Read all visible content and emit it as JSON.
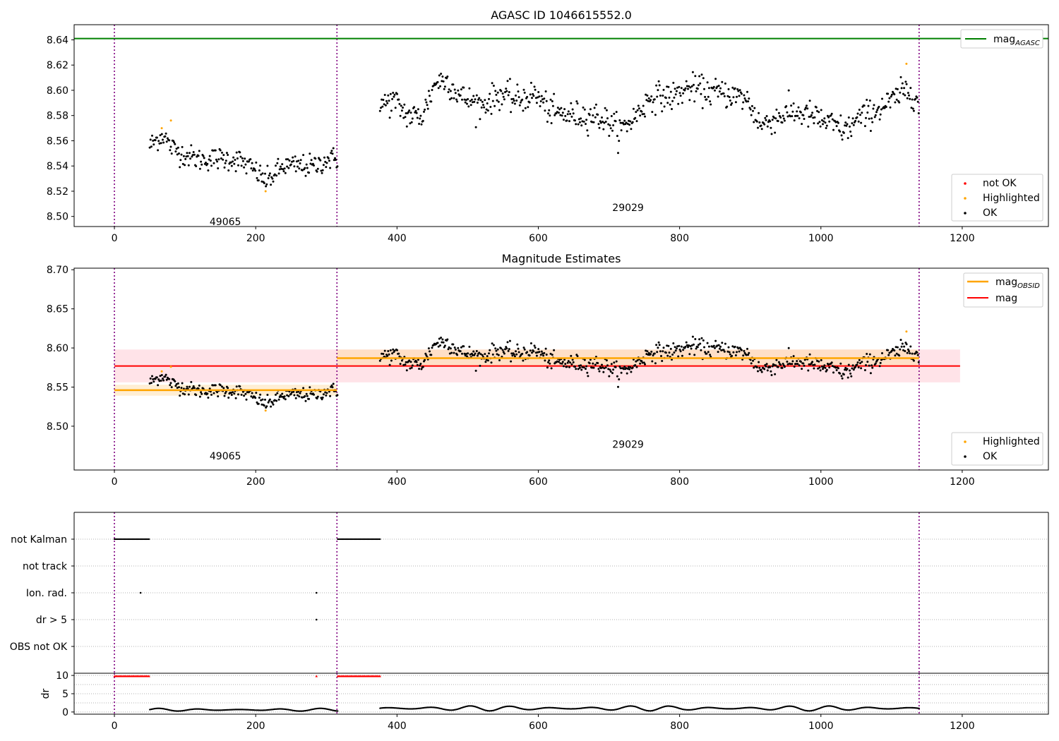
{
  "figure": {
    "title": "AGASC ID 1046615552.0",
    "subtitle": "Magnitude Estimates"
  },
  "colors": {
    "mag_agasc": "#008000",
    "mag_obsid": "#ffa500",
    "mag": "#ff0000",
    "ok": "#000000",
    "highlighted": "#ffa500",
    "not_ok": "#ff0000",
    "obsid_boundary": "#800080",
    "band_mag": "#ffc0cb",
    "band_obsid": "#ffd9a0"
  },
  "chart_data": [
    {
      "type": "scatter",
      "title": "AGASC ID 1046615552.0",
      "xlim": [
        -57,
        1322
      ],
      "ylim": [
        8.492,
        8.652
      ],
      "xticks": [
        0,
        200,
        400,
        600,
        800,
        1000,
        1200
      ],
      "xtick_labels": [
        "0",
        "200",
        "400",
        "600",
        "800",
        "1000",
        "1200"
      ],
      "yticks": [
        8.5,
        8.52,
        8.54,
        8.56,
        8.58,
        8.6,
        8.62,
        8.64
      ],
      "ytick_labels": [
        "8.50",
        "8.52",
        "8.54",
        "8.56",
        "8.58",
        "8.60",
        "8.62",
        "8.64"
      ],
      "obsid_boundaries": [
        0,
        315,
        1139
      ],
      "obsid_labels": [
        {
          "text": "49065",
          "x": 157,
          "y": 8.496
        },
        {
          "text": "29029",
          "x": 727,
          "y": 8.507
        }
      ],
      "lines": [
        {
          "name": "mag_AGASC",
          "y": 8.641
        }
      ],
      "legend_top": {
        "position": "upper right",
        "entries": [
          "mag_AGASC"
        ]
      },
      "legend": {
        "position": "lower right",
        "entries": [
          "not OK",
          "Highlighted",
          "OK"
        ]
      },
      "series": [
        {
          "name": "OK",
          "segments": [
            {
              "x_start": 50,
              "x_end": 316,
              "knots": [
                [
                  50,
                  8.556
                ],
                [
                  62,
                  8.562
                ],
                [
                  70,
                  8.565
                ],
                [
                  78,
                  8.556
                ],
                [
                  95,
                  8.55
                ],
                [
                  120,
                  8.545
                ],
                [
                  150,
                  8.546
                ],
                [
                  175,
                  8.545
                ],
                [
                  195,
                  8.538
                ],
                [
                  215,
                  8.528
                ],
                [
                  240,
                  8.54
                ],
                [
                  265,
                  8.54
                ],
                [
                  285,
                  8.54
                ],
                [
                  300,
                  8.545
                ],
                [
                  316,
                  8.546
                ]
              ],
              "noise": 0.0045
            },
            {
              "x_start": 376,
              "x_end": 1139,
              "knots": [
                [
                  376,
                  8.588
                ],
                [
                  395,
                  8.592
                ],
                [
                  415,
                  8.58
                ],
                [
                  435,
                  8.579
                ],
                [
                  455,
                  8.607
                ],
                [
                  470,
                  8.608
                ],
                [
                  490,
                  8.595
                ],
                [
                  520,
                  8.588
                ],
                [
                  545,
                  8.597
                ],
                [
                  570,
                  8.592
                ],
                [
                  595,
                  8.597
                ],
                [
                  620,
                  8.582
                ],
                [
                  650,
                  8.58
                ],
                [
                  680,
                  8.58
                ],
                [
                  700,
                  8.575
                ],
                [
                  715,
                  8.568
                ],
                [
                  735,
                  8.578
                ],
                [
                  760,
                  8.595
                ],
                [
                  790,
                  8.595
                ],
                [
                  815,
                  8.602
                ],
                [
                  840,
                  8.599
                ],
                [
                  870,
                  8.597
                ],
                [
                  895,
                  8.593
                ],
                [
                  915,
                  8.572
                ],
                [
                  935,
                  8.578
                ],
                [
                  960,
                  8.583
                ],
                [
                  985,
                  8.58
                ],
                [
                  1010,
                  8.574
                ],
                [
                  1035,
                  8.568
                ],
                [
                  1055,
                  8.578
                ],
                [
                  1080,
                  8.585
                ],
                [
                  1100,
                  8.591
                ],
                [
                  1120,
                  8.6
                ],
                [
                  1135,
                  8.597
                ],
                [
                  1139,
                  8.583
                ]
              ],
              "noise": 0.0055
            }
          ]
        },
        {
          "name": "Highlighted",
          "points": [
            [
              67,
              8.57
            ],
            [
              80,
              8.576
            ],
            [
              214,
              8.52
            ],
            [
              1121,
              8.621
            ]
          ]
        },
        {
          "name": "not OK",
          "points": []
        }
      ]
    },
    {
      "type": "scatter",
      "title": "Magnitude Estimates",
      "xlim": [
        -57,
        1322
      ],
      "ylim": [
        8.444,
        8.702
      ],
      "xticks": [
        0,
        200,
        400,
        600,
        800,
        1000,
        1200
      ],
      "xtick_labels": [
        "0",
        "200",
        "400",
        "600",
        "800",
        "1000",
        "1200"
      ],
      "yticks": [
        8.5,
        8.55,
        8.6,
        8.65,
        8.7
      ],
      "ytick_labels": [
        "8.50",
        "8.55",
        "8.60",
        "8.65",
        "8.70"
      ],
      "obsid_boundaries": [
        0,
        315,
        1139
      ],
      "obsid_labels": [
        {
          "text": "49065",
          "x": 157,
          "y": 8.462
        },
        {
          "text": "29029",
          "x": 727,
          "y": 8.477
        }
      ],
      "lines": [
        {
          "name": "mag_OBSID",
          "segments": [
            [
              0,
              315,
              8.546
            ],
            [
              315,
              1139,
              8.587
            ]
          ]
        },
        {
          "name": "mag",
          "x_range": [
            0,
            1197
          ],
          "y": 8.577
        }
      ],
      "bands": [
        {
          "name": "mag",
          "x_range": [
            0,
            1197
          ],
          "y_range": [
            8.556,
            8.598
          ]
        },
        {
          "name": "mag_OBSID",
          "x_range": [
            0,
            315
          ],
          "y_range": [
            8.539,
            8.553
          ]
        },
        {
          "name": "mag_OBSID",
          "x_range": [
            315,
            1139
          ],
          "y_range": [
            8.577,
            8.598
          ]
        }
      ],
      "legend_top": {
        "position": "upper right",
        "entries": [
          "mag_OBSID",
          "mag"
        ]
      },
      "legend": {
        "position": "lower right",
        "entries": [
          "Highlighted",
          "OK"
        ]
      },
      "series": [
        {
          "name": "OK",
          "same_as_panel": 0
        },
        {
          "name": "Highlighted",
          "points": [
            [
              67,
              8.57
            ],
            [
              80,
              8.576
            ],
            [
              214,
              8.52
            ],
            [
              1121,
              8.621
            ]
          ]
        }
      ]
    },
    {
      "type": "scatter",
      "title": "",
      "xlim": [
        -57,
        1322
      ],
      "categories": [
        "not Kalman",
        "not track",
        "Ion. rad.",
        "dr > 5",
        "OBS not OK"
      ],
      "obsid_boundaries": [
        0,
        315,
        1139
      ],
      "flags": [
        {
          "category": "not Kalman",
          "x_ranges": [
            [
              0,
              50
            ],
            [
              316,
              376
            ]
          ]
        },
        {
          "category": "not track",
          "x_ranges": []
        },
        {
          "category": "Ion. rad.",
          "points": [
            37,
            286
          ]
        },
        {
          "category": "dr > 5",
          "points": [
            286
          ]
        },
        {
          "category": "OBS not OK",
          "x_ranges": []
        }
      ]
    },
    {
      "type": "scatter",
      "title": "",
      "ylabel": "dr",
      "xlim": [
        -57,
        1322
      ],
      "ylim": [
        -0.6,
        10.6
      ],
      "yticks": [
        0,
        5,
        10
      ],
      "ytick_labels": [
        "0",
        "5",
        "10"
      ],
      "xticks": [
        0,
        200,
        400,
        600,
        800,
        1000,
        1200
      ],
      "xtick_labels": [
        "0",
        "200",
        "400",
        "600",
        "800",
        "1000",
        "1200"
      ],
      "obsid_boundaries": [
        0,
        315,
        1139
      ],
      "clipped_at_10": [
        {
          "x_range": [
            0,
            50
          ]
        },
        {
          "x_range": [
            316,
            376
          ]
        },
        {
          "x": 286
        }
      ],
      "series": [
        {
          "name": "dr",
          "segments": [
            {
              "x_start": 50,
              "x_end": 316,
              "mean": 0.6,
              "amplitude": 0.4
            },
            {
              "x_start": 376,
              "x_end": 1139,
              "mean": 1.0,
              "amplitude": 0.7
            }
          ]
        }
      ]
    }
  ]
}
